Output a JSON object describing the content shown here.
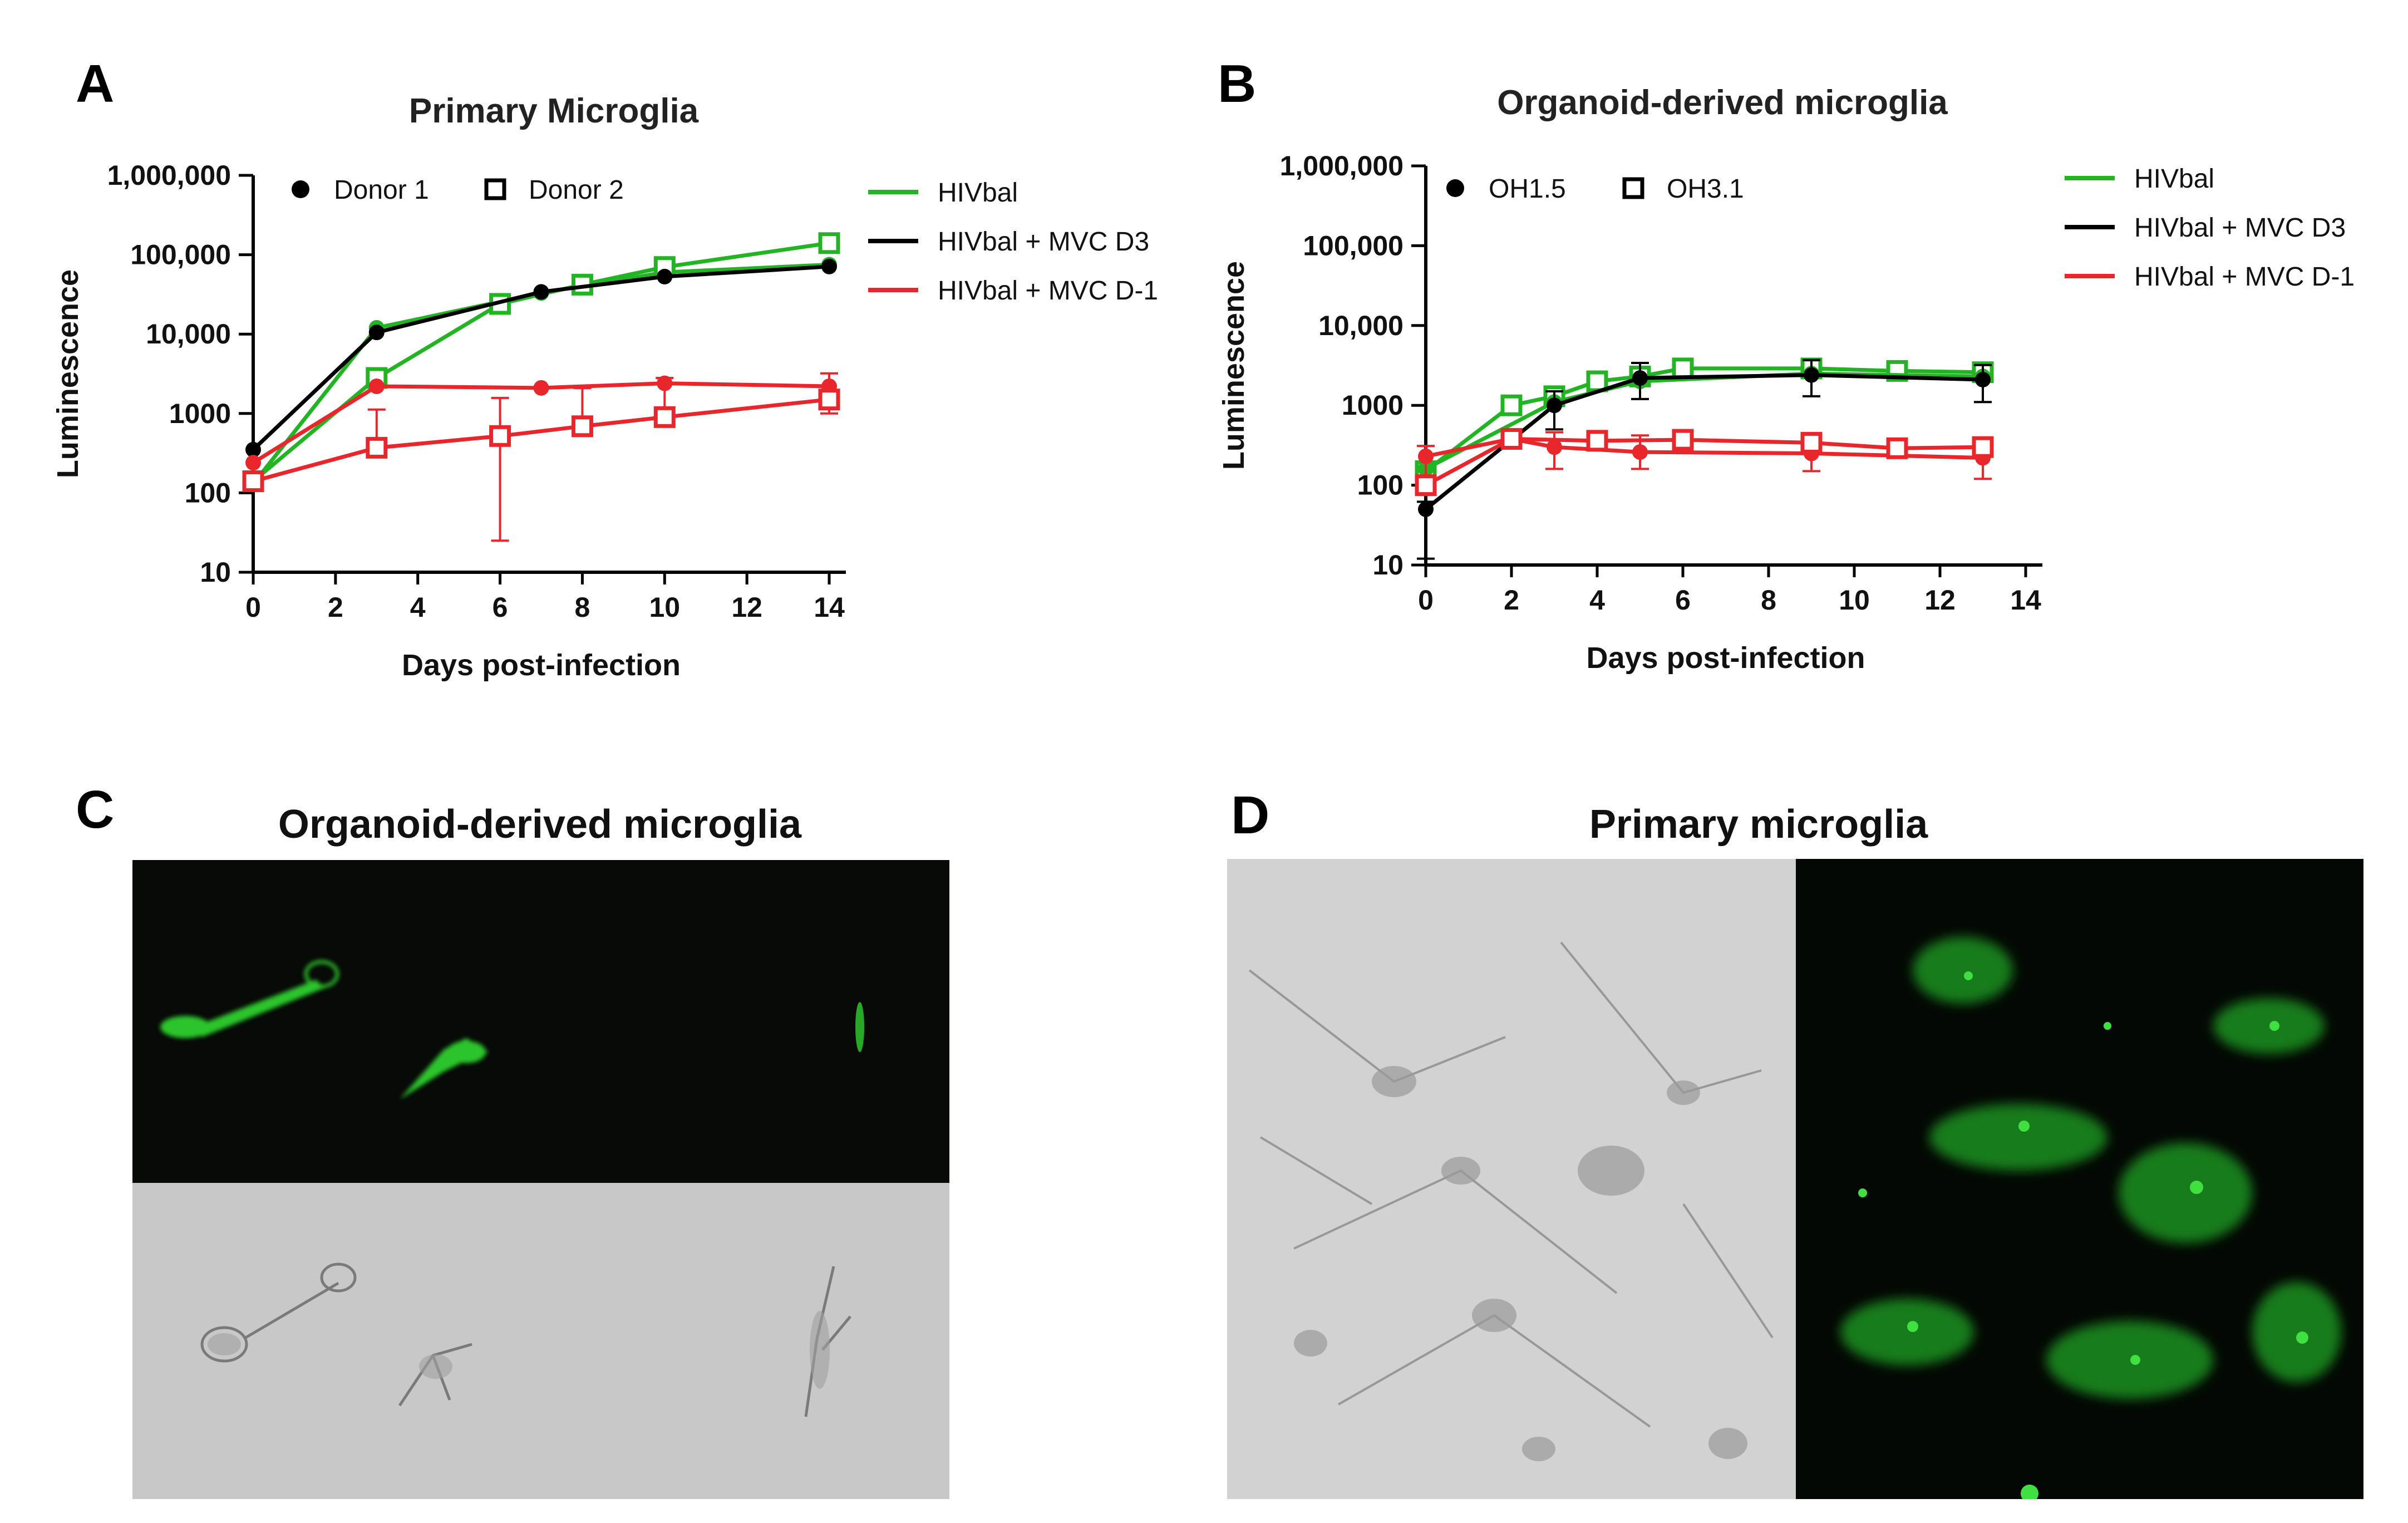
{
  "panels": {
    "A": {
      "letter": "A"
    },
    "B": {
      "letter": "B"
    },
    "C": {
      "letter": "C",
      "title": "Organoid-derived microglia"
    },
    "D": {
      "letter": "D",
      "title": "Primary microglia"
    }
  },
  "colors": {
    "green": "#22b422",
    "black": "#000000",
    "red": "#e8262b",
    "fluor_green": "#22d02a"
  },
  "chart_data": [
    {
      "type": "line",
      "title": "Primary Microglia",
      "xlabel": "Days post-infection",
      "ylabel": "Luminescence",
      "y_scale": "log",
      "xlim": [
        0,
        14
      ],
      "ylim": [
        10,
        1000000
      ],
      "x_ticks": [
        "0",
        "2",
        "4",
        "6",
        "8",
        "10",
        "12",
        "14"
      ],
      "y_ticks": [
        "10",
        "100",
        "1000",
        "10,000",
        "100,000",
        "1,000,000"
      ],
      "marker_legend": [
        {
          "marker": "filled-circle",
          "label": "Donor 1"
        },
        {
          "marker": "open-square",
          "label": "Donor 2"
        }
      ],
      "color_legend": [
        {
          "label": "HIVbal",
          "color": "#22b422"
        },
        {
          "label": "HIVbal + MVC D3",
          "color": "#000000"
        },
        {
          "label": "HIVbal + MVC D-1",
          "color": "#e8262b"
        }
      ],
      "series": [
        {
          "condition": "HIVbal",
          "donor": "Donor 1",
          "marker": "filled-circle",
          "color": "#22b422",
          "x": [
            0,
            3,
            7,
            10,
            14
          ],
          "y": [
            130,
            12000,
            33000,
            60000,
            75000
          ]
        },
        {
          "condition": "HIVbal",
          "donor": "Donor 2",
          "marker": "open-square",
          "color": "#22b422",
          "x": [
            0,
            3,
            6,
            8,
            10,
            14
          ],
          "y": [
            140,
            2800,
            24000,
            42000,
            70000,
            140000
          ]
        },
        {
          "condition": "HIVbal + MVC D3",
          "donor": "Donor 1",
          "marker": "filled-circle",
          "color": "#000000",
          "x": [
            0,
            3,
            7,
            10,
            14
          ],
          "y": [
            350,
            10500,
            34000,
            53000,
            71000
          ]
        },
        {
          "condition": "HIVbal + MVC D-1",
          "donor": "Donor 1",
          "marker": "filled-circle",
          "color": "#e8262b",
          "x": [
            0,
            3,
            7,
            10,
            14
          ],
          "y": [
            240,
            2200,
            2100,
            2400,
            2200
          ],
          "err": [
            0,
            0,
            0,
            0,
            1000
          ]
        },
        {
          "condition": "HIVbal + MVC D-1",
          "donor": "Donor 2",
          "marker": "open-square",
          "color": "#e8262b",
          "x": [
            0,
            3,
            6,
            8,
            10,
            14
          ],
          "y": [
            140,
            370,
            520,
            690,
            900,
            1500
          ],
          "err_up": [
            0,
            750,
            1050,
            1400,
            1900,
            0
          ],
          "err_down": [
            0,
            0,
            25,
            0,
            0,
            0
          ]
        }
      ]
    },
    {
      "type": "line",
      "title": "Organoid-derived microglia",
      "xlabel": "Days post-infection",
      "ylabel": "Luminescence",
      "y_scale": "log",
      "xlim": [
        0,
        14
      ],
      "ylim": [
        10,
        1000000
      ],
      "x_ticks": [
        "0",
        "2",
        "4",
        "6",
        "8",
        "10",
        "12",
        "14"
      ],
      "y_ticks": [
        "10",
        "100",
        "1000",
        "10,000",
        "100,000",
        "1,000,000"
      ],
      "marker_legend": [
        {
          "marker": "filled-circle",
          "label": "OH1.5"
        },
        {
          "marker": "open-square",
          "label": "OH3.1"
        }
      ],
      "color_legend": [
        {
          "label": "HIVbal",
          "color": "#22b422"
        },
        {
          "label": "HIVbal + MVC D3",
          "color": "#000000"
        },
        {
          "label": "HIVbal + MVC D-1",
          "color": "#e8262b"
        }
      ],
      "series": [
        {
          "condition": "HIVbal",
          "donor": "OH3.1",
          "marker": "open-square",
          "color": "#22b422",
          "x": [
            0,
            2,
            3,
            4,
            5,
            6,
            9,
            11,
            13
          ],
          "y": [
            150,
            1000,
            1300,
            2000,
            2300,
            2900,
            2900,
            2700,
            2600
          ]
        },
        {
          "condition": "HIVbal",
          "donor": "OH1.5",
          "marker": "filled-circle",
          "color": "#22b422",
          "x": [
            0,
            3,
            5,
            9,
            13
          ],
          "y": [
            160,
            1100,
            2000,
            2500,
            2300
          ]
        },
        {
          "condition": "HIVbal + MVC D3",
          "donor": "OH1.5",
          "marker": "filled-circle",
          "color": "#000000",
          "x": [
            0,
            3,
            5,
            9,
            13
          ],
          "y": [
            50,
            1000,
            2200,
            2400,
            2100
          ],
          "err": [
            12,
            500,
            1200,
            1300,
            1100
          ]
        },
        {
          "condition": "HIVbal + MVC D-1",
          "donor": "OH1.5",
          "marker": "filled-circle",
          "color": "#e8262b",
          "x": [
            0,
            2,
            3,
            5,
            9,
            13
          ],
          "y": [
            230,
            380,
            300,
            260,
            250,
            220
          ],
          "err": [
            80,
            0,
            160,
            160,
            150,
            120
          ]
        },
        {
          "condition": "HIVbal + MVC D-1",
          "donor": "OH3.1",
          "marker": "open-square",
          "color": "#e8262b",
          "x": [
            0,
            2,
            4,
            6,
            9,
            11,
            13
          ],
          "y": [
            100,
            380,
            360,
            370,
            340,
            290,
            300
          ]
        }
      ]
    }
  ]
}
